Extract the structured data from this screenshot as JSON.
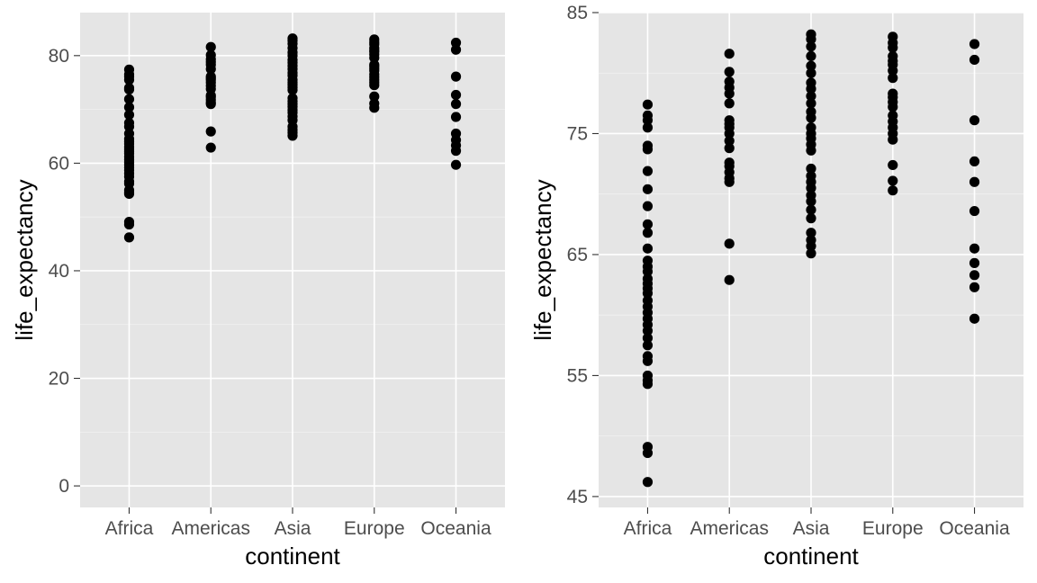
{
  "chart_data": [
    {
      "type": "scatter",
      "xlabel": "continent",
      "ylabel": "life_expectancy",
      "categories": [
        "Africa",
        "Americas",
        "Asia",
        "Europe",
        "Oceania"
      ],
      "ylim": [
        -4,
        88
      ],
      "y_ticks": [
        0,
        20,
        40,
        60,
        80
      ],
      "y_tick_labels": [
        "0",
        "20",
        "40",
        "60",
        "80"
      ],
      "grid": true,
      "points": {
        "Africa": [
          77.4,
          76.5,
          76.1,
          75.5,
          74.0,
          73.7,
          71.9,
          70.4,
          69.0,
          67.5,
          66.8,
          65.5,
          64.5,
          64.0,
          63.6,
          63.0,
          62.6,
          62.2,
          61.8,
          61.2,
          60.7,
          60.2,
          59.7,
          59.2,
          58.7,
          58.1,
          57.5,
          56.6,
          56.2,
          55.0,
          54.6,
          54.3,
          49.1,
          48.6,
          46.2
        ],
        "Americas": [
          81.6,
          80.1,
          79.3,
          78.8,
          78.3,
          77.5,
          76.1,
          75.8,
          75.5,
          75.0,
          74.4,
          73.8,
          72.6,
          72.3,
          71.8,
          71.3,
          71.0,
          65.9,
          62.9
        ],
        "Asia": [
          83.2,
          82.8,
          82.2,
          81.4,
          80.6,
          80.0,
          79.2,
          78.7,
          78.1,
          77.5,
          76.8,
          76.3,
          75.5,
          75.0,
          74.6,
          74.1,
          73.6,
          72.1,
          71.5,
          71.0,
          70.5,
          69.9,
          69.4,
          68.7,
          68.0,
          66.8,
          66.2,
          65.7,
          65.1
        ],
        "Europe": [
          83.0,
          82.5,
          82.1,
          81.4,
          81.0,
          80.7,
          80.2,
          79.6,
          78.3,
          78.0,
          77.6,
          77.2,
          76.5,
          76.0,
          75.5,
          75.0,
          74.5,
          72.4,
          71.1,
          70.3
        ],
        "Oceania": [
          82.4,
          81.1,
          76.1,
          72.7,
          71.0,
          68.6,
          65.5,
          64.3,
          63.3,
          62.3,
          59.7
        ]
      }
    },
    {
      "type": "scatter",
      "xlabel": "continent",
      "ylabel": "life_expectancy",
      "categories": [
        "Africa",
        "Americas",
        "Asia",
        "Europe",
        "Oceania"
      ],
      "ylim": [
        44.1,
        85
      ],
      "y_ticks": [
        45,
        55,
        65,
        75,
        85
      ],
      "y_tick_labels": [
        "45",
        "55",
        "65",
        "75",
        "85"
      ],
      "grid": true,
      "points": {
        "Africa": [
          77.4,
          76.5,
          76.1,
          75.5,
          74.0,
          73.7,
          71.9,
          70.4,
          69.0,
          67.5,
          66.8,
          65.5,
          64.5,
          64.0,
          63.6,
          63.0,
          62.6,
          62.2,
          61.8,
          61.2,
          60.7,
          60.2,
          59.7,
          59.2,
          58.7,
          58.1,
          57.5,
          56.6,
          56.2,
          55.0,
          54.6,
          54.3,
          49.1,
          48.6,
          46.2
        ],
        "Americas": [
          81.6,
          80.1,
          79.3,
          78.8,
          78.3,
          77.5,
          76.1,
          75.8,
          75.5,
          75.0,
          74.4,
          73.8,
          72.6,
          72.3,
          71.8,
          71.3,
          71.0,
          65.9,
          62.9
        ],
        "Asia": [
          83.2,
          82.8,
          82.2,
          81.4,
          80.6,
          80.0,
          79.2,
          78.7,
          78.1,
          77.5,
          76.8,
          76.3,
          75.5,
          75.0,
          74.6,
          74.1,
          73.6,
          72.1,
          71.5,
          71.0,
          70.5,
          69.9,
          69.4,
          68.7,
          68.0,
          66.8,
          66.2,
          65.7,
          65.1
        ],
        "Europe": [
          83.0,
          82.5,
          82.1,
          81.4,
          81.0,
          80.7,
          80.2,
          79.6,
          78.3,
          78.0,
          77.6,
          77.2,
          76.5,
          76.0,
          75.5,
          75.0,
          74.5,
          72.4,
          71.1,
          70.3
        ],
        "Oceania": [
          82.4,
          81.1,
          76.1,
          72.7,
          71.0,
          68.6,
          65.5,
          64.3,
          63.3,
          62.3,
          59.7
        ]
      }
    }
  ]
}
